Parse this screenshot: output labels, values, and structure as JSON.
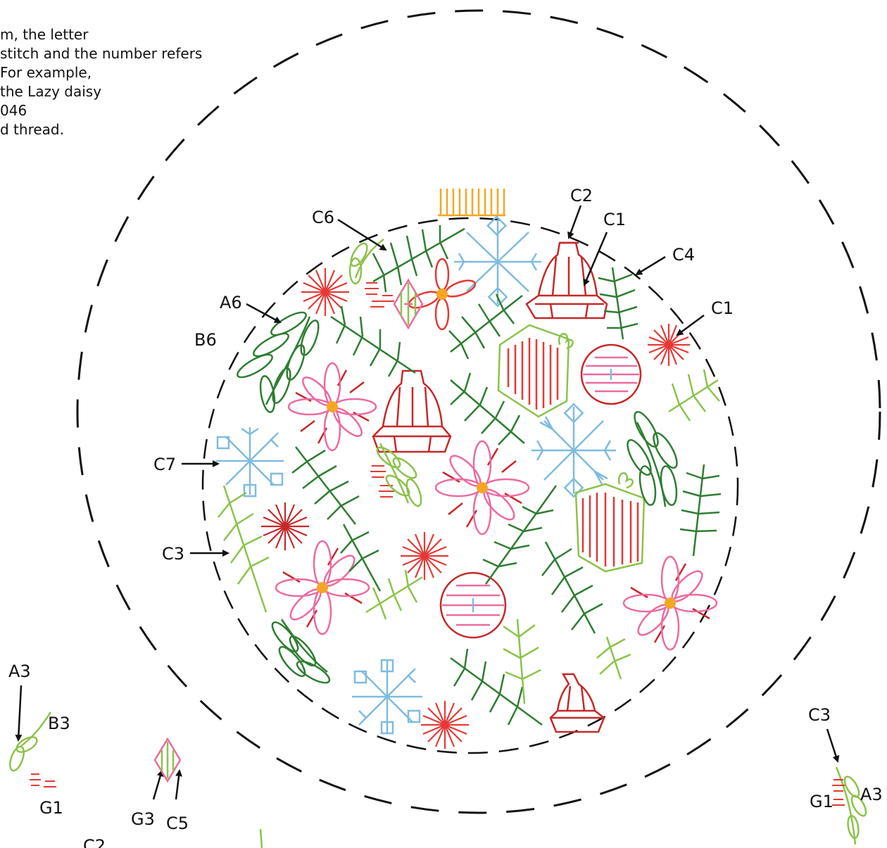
{
  "instructions": [
    "m,  the letter",
    "stitch and the number refers",
    "For example,",
    "the Lazy daisy",
    "046",
    "d thread."
  ],
  "labels": {
    "c2_top": "C2",
    "c1_top": "C1",
    "c6": "C6",
    "c4": "C4",
    "c1_right": "C1",
    "a6": "A6",
    "b6": "B6",
    "c7": "C7",
    "c3_left": "C3",
    "a3_left": "A3",
    "b3_left": "B3",
    "g1_left": "G1",
    "g3": "G3",
    "c5": "C5",
    "c2_bottom": "C2",
    "c3_right": "C3",
    "a3_right": "A3",
    "g1_right": "G1"
  },
  "colors": {
    "dark_green": "#2e7d32",
    "light_green": "#8bc34a",
    "red": "#e53935",
    "dark_red": "#c62828",
    "pink": "#ec6aa0",
    "blue": "#7fbbe0",
    "orange": "#f5a623"
  }
}
